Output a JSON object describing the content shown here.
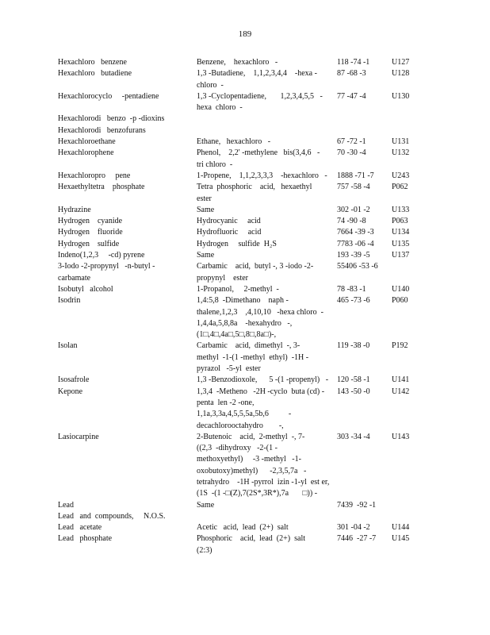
{
  "page_number": "189",
  "rows": [
    {
      "name": [
        "Hexachloro   benzene"
      ],
      "synonym": [
        "Benzene,    hexachloro   -"
      ],
      "cas": "118 -74 -1",
      "code": "U127"
    },
    {
      "name": [
        "Hexachloro   butadiene"
      ],
      "synonym": [
        "1,3 -Butadiene,    1,1,2,3,4,4    -hexa -",
        "chloro  -"
      ],
      "cas": "87 -68 -3",
      "code": "U128"
    },
    {
      "name": [
        "Hexachlorocyclo     -pentadiene"
      ],
      "synonym": [
        "1,3 -Cyclopentadiene,       1,2,3,4,5,5   -",
        "hexa  chloro  -"
      ],
      "cas": "77 -47 -4",
      "code": "U130"
    },
    {
      "name": [
        "Hexachlorodi   benzo  -p -dioxins"
      ],
      "synonym": [
        ""
      ],
      "cas": "",
      "code": ""
    },
    {
      "name": [
        "Hexachlorodi   benzofurans"
      ],
      "synonym": [
        ""
      ],
      "cas": "",
      "code": ""
    },
    {
      "name": [
        "Hexachloroethane"
      ],
      "synonym": [
        "Ethane,   hexachloro   -"
      ],
      "cas": "67 -72 -1",
      "code": "U131"
    },
    {
      "name": [
        "Hexachlorophene"
      ],
      "synonym": [
        "Phenol,    2,2' -methylene   bis(3,4,6   -",
        "tri chloro  -"
      ],
      "cas": "70 -30 -4",
      "code": "U132"
    },
    {
      "name": [
        "Hexachloropro     pene"
      ],
      "synonym": [
        "1-Propene,    1,1,2,3,3,3    -hexachloro   -"
      ],
      "cas": "1888 -71 -7",
      "code": "U243"
    },
    {
      "name": [
        "Hexaethyltetra    phosphate"
      ],
      "synonym": [
        "Tetra  phosphoric    acid,   hexaethyl",
        "ester"
      ],
      "cas": "757 -58 -4",
      "code": "P062"
    },
    {
      "name": [
        "Hydrazine"
      ],
      "synonym": [
        "Same"
      ],
      "cas": "302 -01 -2",
      "code": "U133"
    },
    {
      "name": [
        "Hydrogen    cyanide"
      ],
      "synonym": [
        "Hydrocyanic     acid"
      ],
      "cas": "74 -90 -8",
      "code": "P063"
    },
    {
      "name": [
        "Hydrogen    fluoride"
      ],
      "synonym": [
        "Hydrofluoric     acid"
      ],
      "cas": "7664 -39 -3",
      "code": "U134"
    },
    {
      "name": [
        "Hydrogen    sulfide"
      ],
      "synonym": [
        "Hydrogen     sulfide  H₂S"
      ],
      "cas": "7783 -06 -4",
      "code": "U135"
    },
    {
      "name": [
        "Indeno(1,2,3     -cd) pyrene"
      ],
      "synonym": [
        "Same"
      ],
      "cas": "193 -39 -5",
      "code": "U137"
    },
    {
      "name": [
        "3-Iodo -2-propynyl   -n-butyl -",
        "carbamate"
      ],
      "synonym": [
        "Carbamic    acid,  butyl -, 3 -iodo -2-",
        "propynyl    ester"
      ],
      "cas": "55406 -53 -6",
      "code": ""
    },
    {
      "name": [
        "Isobutyl   alcohol"
      ],
      "synonym": [
        "1-Propanol,     2-methyl  -"
      ],
      "cas": "78 -83 -1",
      "code": "U140"
    },
    {
      "name": [
        "Isodrin"
      ],
      "synonym": [
        "1,4:5,8  -Dimethano    naph -",
        "thalene,1,2,3    ,4,10,10   -hexa chloro  -",
        "1,4,4a,5,8,8a    -hexahydro   -,",
        "(1□,4□,4a□,5□,8□,8a□)-,"
      ],
      "cas": "465 -73 -6",
      "code": "P060"
    },
    {
      "name": [
        "Isolan"
      ],
      "synonym": [
        "Carbamic    acid,  dimethyl  -, 3-",
        "methyl  -1-(1 -methyl  ethyl)  -1H -",
        "pyrazol   -5-yl  ester"
      ],
      "cas": "119 -38 -0",
      "code": "P192"
    },
    {
      "name": [
        "Isosafrole"
      ],
      "synonym": [
        "1,3 -Benzodioxole,      5 -(1 -propenyl)   -"
      ],
      "cas": "120 -58 -1",
      "code": "U141"
    },
    {
      "name": [
        "Kepone"
      ],
      "synonym": [
        "1,3,4  -Metheno   -2H -cyclo  buta (cd) -",
        "penta  len -2 -one,",
        "1,1a,3,3a,4,5,5,5a,5b,6          -",
        "decachlorooctahydro        -,"
      ],
      "cas": "143 -50 -0",
      "code": "U142"
    },
    {
      "name": [
        "Lasiocarpine"
      ],
      "synonym": [
        "2-Butenoic    acid,  2-methyl  -, 7-",
        "((2,3  -dihydroxy   -2-(1 -",
        "methoxyethyl)     -3 -methyl   -1-",
        "oxobutoxy)methyl)      -2,3,5,7a   -",
        "tetrahydro    -1H -pyrrol  izin -1-yl  est er,",
        "(1S  -(1 -□(Z),7(2S*,3R*),7a       □)) -"
      ],
      "cas": "303 -34 -4",
      "code": "U143"
    },
    {
      "name": [
        "Lead"
      ],
      "synonym": [
        "Same"
      ],
      "cas": "7439  -92 -1",
      "code": ""
    },
    {
      "name": [
        "Lead   and  compounds,     N.O.S."
      ],
      "synonym": [
        ""
      ],
      "cas": "",
      "code": ""
    },
    {
      "name": [
        "Lead   acetate"
      ],
      "synonym": [
        "Acetic   acid,  lead  (2+)  salt"
      ],
      "cas": "301 -04 -2",
      "code": "U144"
    },
    {
      "name": [
        "Lead   phosphate"
      ],
      "synonym": [
        "Phosphoric    acid,  lead  (2+)  salt",
        "(2:3)"
      ],
      "cas": "7446  -27 -7",
      "code": "U145"
    }
  ]
}
